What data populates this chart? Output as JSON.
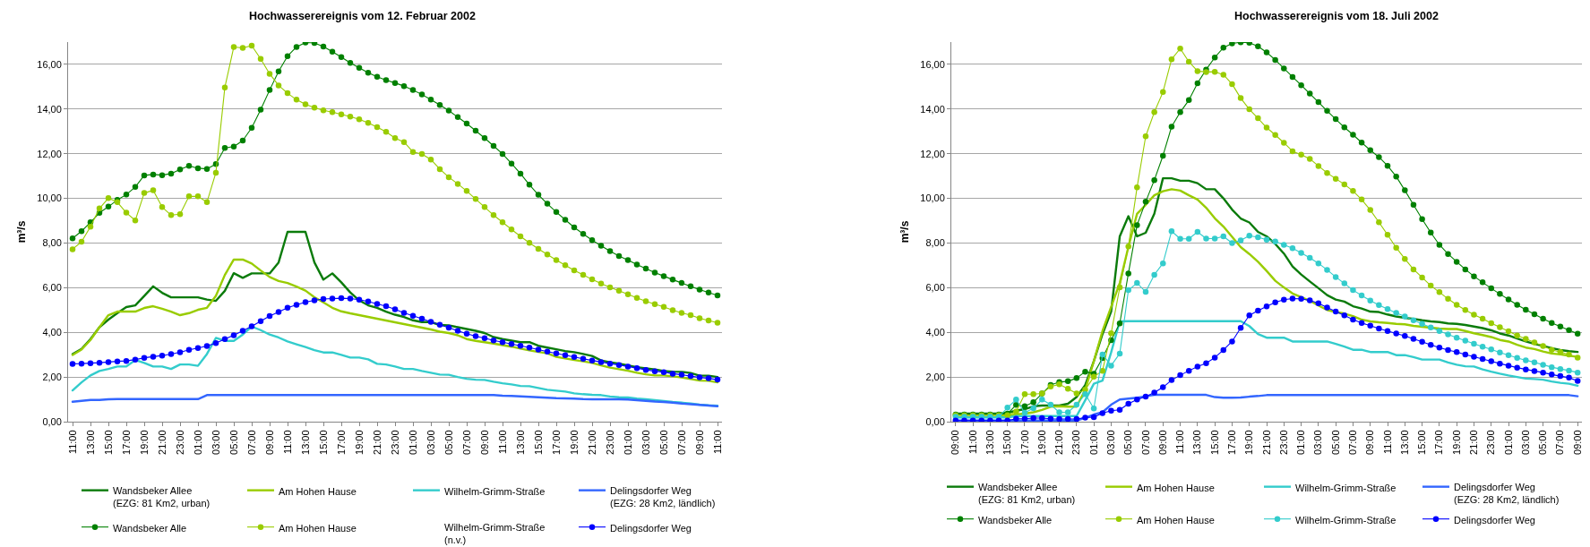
{
  "chart_data": [
    {
      "type": "line",
      "title": "Hochwasserereignis vom 12. Februar 2002",
      "ylabel": "m³/s",
      "grid": "y",
      "legend": "bottom",
      "categories": [
        "11:00",
        null,
        "13:00",
        null,
        "15:00",
        null,
        "17:00",
        null,
        "19:00",
        null,
        "21:00",
        null,
        "23:00",
        null,
        "01:00",
        null,
        "03:00",
        null,
        "05:00",
        null,
        "07:00",
        null,
        "09:00",
        null,
        "11:00",
        null,
        "13:00",
        null,
        "15:00",
        null,
        "17:00",
        null,
        "19:00",
        null,
        "21:00",
        null,
        "23:00",
        null,
        "01:00",
        null,
        "03:00",
        null,
        "05:00",
        null,
        "07:00",
        null,
        "09:00",
        null,
        "11:00",
        null,
        "13:00",
        null,
        "15:00",
        null,
        "17:00",
        null,
        "19:00",
        null,
        "21:00",
        null,
        "23:00",
        null,
        "01:00",
        null,
        "03:00",
        null,
        "05:00",
        null,
        "07:00",
        null,
        "09:00",
        null,
        "11:00"
      ],
      "ylim": [
        0,
        17
      ],
      "yticks": [
        {
          "value": 0,
          "label": "0,00"
        },
        {
          "value": 2,
          "label": "2,00"
        },
        {
          "value": 4,
          "label": "4,00"
        },
        {
          "value": 6,
          "label": "6,00"
        },
        {
          "value": 8,
          "label": "8,00"
        },
        {
          "value": 10,
          "label": "10,00"
        },
        {
          "value": 12,
          "label": "12,00"
        },
        {
          "value": 14,
          "label": "14,00"
        },
        {
          "value": 16,
          "label": "16,00"
        }
      ],
      "series": [
        {
          "name": "Wandsbeker Allee\n(EZG: 81 Km2, urban)",
          "color": "#0b7b0b",
          "marker": "none",
          "values": [
            3.03,
            3.26,
            3.7,
            4.23,
            4.57,
            4.86,
            5.13,
            5.21,
            5.63,
            6.06,
            5.77,
            5.57,
            5.57,
            5.57,
            5.57,
            5.47,
            5.41,
            5.86,
            6.65,
            6.44,
            6.64,
            6.64,
            6.64,
            7.13,
            8.5,
            8.5,
            8.5,
            7.13,
            6.36,
            6.64,
            6.24,
            5.79,
            5.43,
            5.21,
            5.1,
            4.93,
            4.79,
            4.69,
            4.54,
            4.46,
            4.46,
            4.33,
            4.31,
            4.23,
            4.15,
            4.07,
            3.97,
            3.79,
            3.7,
            3.63,
            3.56,
            3.56,
            3.4,
            3.32,
            3.24,
            3.16,
            3.11,
            3.03,
            2.94,
            2.74,
            2.66,
            2.6,
            2.52,
            2.44,
            2.39,
            2.34,
            2.27,
            2.24,
            2.23,
            2.18,
            2.06,
            2.06,
            2.0
          ]
        },
        {
          "name": "Am Hohen Hause",
          "color": "#99cc00",
          "marker": "none",
          "values": [
            2.99,
            3.23,
            3.66,
            4.23,
            4.77,
            4.93,
            4.93,
            4.93,
            5.09,
            5.17,
            5.06,
            4.93,
            4.77,
            4.86,
            5.01,
            5.1,
            5.63,
            6.57,
            7.26,
            7.26,
            7.08,
            6.77,
            6.48,
            6.3,
            6.21,
            6.05,
            5.87,
            5.57,
            5.34,
            5.1,
            4.94,
            4.85,
            4.77,
            4.69,
            4.61,
            4.53,
            4.45,
            4.37,
            4.29,
            4.21,
            4.13,
            4.03,
            3.97,
            3.87,
            3.7,
            3.62,
            3.56,
            3.5,
            3.43,
            3.36,
            3.27,
            3.19,
            3.12,
            3.06,
            2.9,
            2.83,
            2.76,
            2.7,
            2.63,
            2.52,
            2.42,
            2.35,
            2.28,
            2.19,
            2.12,
            2.07,
            2.07,
            2.03,
            1.98,
            1.91,
            1.84,
            1.83,
            1.76
          ]
        },
        {
          "name": "Wilhelm-Grimm-Straße",
          "color": "#33cccc",
          "marker": "none",
          "values": [
            1.4,
            1.76,
            2.07,
            2.27,
            2.36,
            2.47,
            2.47,
            2.76,
            2.63,
            2.47,
            2.47,
            2.36,
            2.56,
            2.56,
            2.5,
            3.03,
            3.75,
            3.62,
            3.62,
            3.9,
            4.26,
            4.1,
            3.9,
            3.77,
            3.59,
            3.46,
            3.34,
            3.2,
            3.1,
            3.1,
            2.99,
            2.87,
            2.87,
            2.79,
            2.59,
            2.56,
            2.47,
            2.36,
            2.36,
            2.27,
            2.19,
            2.11,
            2.1,
            2.0,
            1.92,
            1.88,
            1.87,
            1.79,
            1.72,
            1.67,
            1.6,
            1.59,
            1.51,
            1.43,
            1.39,
            1.35,
            1.27,
            1.23,
            1.2,
            1.19,
            1.13,
            1.09,
            1.08,
            1.03,
            1.0,
            0.96,
            0.92,
            0.88,
            0.85,
            0.81,
            0.76,
            0.73,
            0.71
          ]
        },
        {
          "name": "Delingsdorfer Weg\n(EZG: 28 Km2, ländlich)",
          "color": "#3366ff",
          "marker": "none",
          "values": [
            0.89,
            0.93,
            0.97,
            0.97,
            1.0,
            1.01,
            1.01,
            1.01,
            1.01,
            1.01,
            1.01,
            1.01,
            1.01,
            1.01,
            1.01,
            1.19,
            1.19,
            1.19,
            1.19,
            1.19,
            1.19,
            1.19,
            1.19,
            1.19,
            1.19,
            1.19,
            1.19,
            1.19,
            1.19,
            1.19,
            1.19,
            1.19,
            1.19,
            1.19,
            1.19,
            1.19,
            1.19,
            1.19,
            1.19,
            1.19,
            1.19,
            1.19,
            1.19,
            1.19,
            1.19,
            1.19,
            1.19,
            1.19,
            1.16,
            1.15,
            1.13,
            1.11,
            1.09,
            1.07,
            1.05,
            1.04,
            1.03,
            1.01,
            1.0,
            1.0,
            1.0,
            1.0,
            0.99,
            0.96,
            0.93,
            0.9,
            0.88,
            0.85,
            0.81,
            0.78,
            0.75,
            0.72,
            0.69
          ]
        },
        {
          "name": "Wandsbeker Alle",
          "color": "#008000",
          "marker": "circle",
          "values": [
            8.21,
            8.53,
            8.93,
            9.35,
            9.63,
            9.93,
            10.17,
            10.51,
            11.03,
            11.07,
            11.04,
            11.11,
            11.3,
            11.46,
            11.35,
            11.32,
            11.54,
            12.26,
            12.32,
            12.59,
            13.16,
            13.97,
            14.85,
            15.69,
            16.37,
            16.78,
            16.98,
            16.96,
            16.8,
            16.57,
            16.33,
            16.07,
            15.85,
            15.63,
            15.45,
            15.3,
            15.17,
            15.03,
            14.85,
            14.65,
            14.42,
            14.18,
            13.93,
            13.64,
            13.35,
            13.03,
            12.7,
            12.35,
            11.99,
            11.56,
            11.11,
            10.61,
            10.16,
            9.76,
            9.39,
            9.04,
            8.7,
            8.41,
            8.13,
            7.88,
            7.64,
            7.42,
            7.24,
            7.04,
            6.86,
            6.68,
            6.52,
            6.36,
            6.21,
            6.06,
            5.91,
            5.78,
            5.65
          ]
        },
        {
          "name": "Am Hohen Hause",
          "color": "#99cc00",
          "marker": "circle",
          "values": [
            7.72,
            8.06,
            8.73,
            9.55,
            10.01,
            9.83,
            9.36,
            9.01,
            10.24,
            10.36,
            9.61,
            9.25,
            9.29,
            10.09,
            10.09,
            9.83,
            11.15,
            14.97,
            16.78,
            16.74,
            16.84,
            16.25,
            15.58,
            15.06,
            14.71,
            14.42,
            14.21,
            14.06,
            13.94,
            13.86,
            13.76,
            13.66,
            13.54,
            13.38,
            13.19,
            12.98,
            12.7,
            12.52,
            12.08,
            11.99,
            11.74,
            11.31,
            10.95,
            10.65,
            10.33,
            9.97,
            9.61,
            9.25,
            8.93,
            8.61,
            8.3,
            8.01,
            7.74,
            7.49,
            7.24,
            7.01,
            6.78,
            6.58,
            6.37,
            6.18,
            6.01,
            5.86,
            5.7,
            5.54,
            5.39,
            5.26,
            5.14,
            4.99,
            4.87,
            4.77,
            4.63,
            4.53,
            4.43
          ]
        },
        {
          "name": "Wilhelm-Grimm-Straße\n(n.v.)",
          "marker": "none",
          "values": [
            null,
            null,
            null,
            null,
            null,
            null,
            null,
            null,
            null,
            null,
            null,
            null,
            null,
            null,
            null,
            null,
            null,
            null,
            null,
            null,
            null,
            null,
            null,
            null,
            null,
            null,
            null,
            null,
            null,
            null,
            null,
            null,
            null,
            null,
            null,
            null,
            null,
            null,
            null,
            null,
            null,
            null,
            null,
            null,
            null,
            null,
            null,
            null,
            null,
            null,
            null,
            null,
            null,
            null,
            null,
            null,
            null,
            null,
            null,
            null,
            null,
            null,
            null,
            null,
            null,
            null,
            null,
            null,
            null,
            null,
            null,
            null,
            null
          ]
        },
        {
          "name": "Delingsdorfer Weg",
          "color": "#0000ff",
          "marker": "circle",
          "values": [
            2.59,
            2.6,
            2.62,
            2.64,
            2.67,
            2.7,
            2.72,
            2.78,
            2.86,
            2.91,
            2.96,
            3.03,
            3.11,
            3.22,
            3.3,
            3.39,
            3.52,
            3.7,
            3.87,
            4.07,
            4.27,
            4.5,
            4.73,
            4.91,
            5.1,
            5.23,
            5.35,
            5.43,
            5.49,
            5.51,
            5.53,
            5.51,
            5.46,
            5.38,
            5.27,
            5.17,
            5.03,
            4.87,
            4.74,
            4.61,
            4.47,
            4.34,
            4.21,
            4.07,
            3.94,
            3.83,
            3.74,
            3.64,
            3.56,
            3.48,
            3.4,
            3.32,
            3.23,
            3.14,
            3.06,
            2.98,
            2.9,
            2.82,
            2.74,
            2.67,
            2.6,
            2.54,
            2.47,
            2.4,
            2.32,
            2.26,
            2.22,
            2.15,
            2.1,
            2.04,
            1.98,
            1.94,
            1.88
          ]
        }
      ]
    },
    {
      "type": "line",
      "title": "Hochwasserereignis vom 18. Juli 2002",
      "ylabel": "m³/s",
      "grid": "y",
      "legend": "bottom",
      "categories": [
        "09:00",
        null,
        "11:00",
        null,
        "13:00",
        null,
        "15:00",
        null,
        "17:00",
        null,
        "19:00",
        null,
        "21:00",
        null,
        "23:00",
        null,
        "01:00",
        null,
        "03:00",
        null,
        "05:00",
        null,
        "07:00",
        null,
        "09:00",
        null,
        "11:00",
        null,
        "13:00",
        null,
        "15:00",
        null,
        "17:00",
        null,
        "19:00",
        null,
        "21:00",
        null,
        "23:00",
        null,
        "01:00",
        null,
        "03:00",
        null,
        "05:00",
        null,
        "07:00",
        null,
        "09:00",
        null,
        "11:00",
        null,
        "13:00",
        null,
        "15:00",
        null,
        "17:00",
        null,
        "19:00",
        null,
        "21:00",
        null,
        "23:00",
        null,
        "01:00",
        null,
        "03:00",
        null,
        "05:00",
        null,
        "07:00",
        null,
        "09:00"
      ],
      "ylim": [
        0,
        17
      ],
      "yticks": [
        {
          "value": 0,
          "label": "0,00"
        },
        {
          "value": 2,
          "label": "2,00"
        },
        {
          "value": 4,
          "label": "4,00"
        },
        {
          "value": 6,
          "label": "6,00"
        },
        {
          "value": 8,
          "label": "8,00"
        },
        {
          "value": 10,
          "label": "10,00"
        },
        {
          "value": 12,
          "label": "12,00"
        },
        {
          "value": 14,
          "label": "14,00"
        },
        {
          "value": 16,
          "label": "16,00"
        }
      ],
      "series": [
        {
          "name": "Wandsbeker Allee\n(EZG: 81 Km2, urban)",
          "color": "#0b7b0b",
          "marker": "none",
          "values": [
            0.36,
            0.36,
            0.36,
            0.36,
            0.36,
            0.36,
            0.4,
            0.49,
            0.56,
            0.69,
            0.72,
            0.72,
            0.72,
            0.8,
            1.1,
            1.64,
            2.71,
            3.92,
            4.93,
            8.3,
            9.2,
            8.3,
            8.46,
            9.31,
            10.9,
            10.9,
            10.79,
            10.79,
            10.68,
            10.41,
            10.41,
            10.0,
            9.5,
            9.1,
            8.92,
            8.5,
            8.3,
            7.96,
            7.53,
            6.95,
            6.59,
            6.28,
            5.98,
            5.67,
            5.47,
            5.38,
            5.17,
            5.07,
            4.93,
            4.91,
            4.8,
            4.71,
            4.65,
            4.6,
            4.54,
            4.49,
            4.46,
            4.4,
            4.38,
            4.33,
            4.26,
            4.19,
            4.09,
            3.95,
            3.86,
            3.72,
            3.59,
            3.48,
            3.39,
            3.29,
            3.21,
            3.16,
            3.12
          ]
        },
        {
          "name": "Am Hohen Hause",
          "color": "#99cc00",
          "marker": "none",
          "values": [
            0.22,
            0.22,
            0.22,
            0.22,
            0.22,
            0.22,
            0.26,
            0.32,
            0.36,
            0.42,
            0.53,
            0.67,
            0.69,
            0.67,
            0.67,
            1.43,
            2.71,
            4.06,
            5.14,
            6.21,
            7.83,
            9.31,
            9.71,
            10.14,
            10.32,
            10.41,
            10.35,
            10.14,
            9.95,
            9.58,
            9.11,
            8.74,
            8.28,
            7.82,
            7.51,
            7.16,
            6.75,
            6.31,
            6.01,
            5.74,
            5.58,
            5.41,
            5.2,
            5.0,
            4.91,
            4.84,
            4.73,
            4.57,
            4.49,
            4.45,
            4.42,
            4.38,
            4.36,
            4.29,
            4.25,
            4.21,
            4.17,
            4.15,
            4.15,
            4.06,
            3.96,
            3.88,
            3.79,
            3.66,
            3.59,
            3.44,
            3.32,
            3.25,
            3.14,
            3.05,
            3.01,
            2.95,
            2.9
          ]
        },
        {
          "name": "Wilhelm-Grimm-Straße",
          "color": "#33cccc",
          "marker": "none",
          "values": [
            0.19,
            0.19,
            0.19,
            0.19,
            0.19,
            0.19,
            0.19,
            0.25,
            0.25,
            0.25,
            0.25,
            0.25,
            0.25,
            0.25,
            0.25,
            0.96,
            1.7,
            1.84,
            3.1,
            4.49,
            4.5,
            4.5,
            4.5,
            4.5,
            4.5,
            4.5,
            4.5,
            4.5,
            4.5,
            4.5,
            4.5,
            4.5,
            4.5,
            4.5,
            4.28,
            3.92,
            3.76,
            3.76,
            3.76,
            3.59,
            3.59,
            3.59,
            3.59,
            3.59,
            3.48,
            3.36,
            3.22,
            3.22,
            3.12,
            3.12,
            3.12,
            2.98,
            2.98,
            2.89,
            2.78,
            2.78,
            2.78,
            2.65,
            2.55,
            2.48,
            2.47,
            2.34,
            2.24,
            2.15,
            2.07,
            2.0,
            1.93,
            1.91,
            1.88,
            1.8,
            1.74,
            1.7,
            1.61
          ]
        },
        {
          "name": "Delingsdorfer Weg\n(EZG: 28 Km2, ländlich)",
          "color": "#3366ff",
          "marker": "none",
          "values": [
            0.05,
            0.05,
            0.05,
            0.05,
            0.05,
            0.05,
            0.05,
            0.05,
            0.05,
            0.05,
            0.05,
            0.05,
            0.05,
            0.05,
            0.05,
            0.18,
            0.32,
            0.42,
            0.76,
            0.99,
            1.03,
            1.07,
            1.14,
            1.2,
            1.2,
            1.2,
            1.2,
            1.2,
            1.2,
            1.2,
            1.1,
            1.07,
            1.07,
            1.08,
            1.12,
            1.15,
            1.19,
            1.19,
            1.19,
            1.19,
            1.19,
            1.19,
            1.19,
            1.19,
            1.19,
            1.19,
            1.19,
            1.19,
            1.19,
            1.19,
            1.19,
            1.19,
            1.19,
            1.19,
            1.19,
            1.19,
            1.19,
            1.19,
            1.19,
            1.19,
            1.19,
            1.19,
            1.19,
            1.19,
            1.19,
            1.19,
            1.19,
            1.19,
            1.19,
            1.19,
            1.19,
            1.19,
            1.14
          ]
        },
        {
          "name": "Wandsbeker Alle",
          "color": "#008000",
          "marker": "circle",
          "values": [
            0.32,
            0.32,
            0.32,
            0.32,
            0.32,
            0.32,
            0.36,
            0.75,
            0.69,
            0.87,
            1.26,
            1.64,
            1.77,
            1.81,
            1.95,
            2.24,
            2.15,
            2.85,
            3.65,
            4.4,
            6.64,
            8.8,
            9.85,
            10.82,
            11.91,
            13.21,
            13.86,
            14.4,
            15.16,
            15.77,
            16.31,
            16.75,
            16.94,
            16.99,
            16.97,
            16.81,
            16.54,
            16.2,
            15.82,
            15.44,
            15.07,
            14.69,
            14.31,
            13.92,
            13.55,
            13.18,
            12.85,
            12.5,
            12.16,
            11.85,
            11.46,
            10.98,
            10.36,
            9.71,
            9.07,
            8.47,
            7.92,
            7.51,
            7.16,
            6.82,
            6.51,
            6.24,
            5.97,
            5.72,
            5.47,
            5.23,
            5.01,
            4.81,
            4.61,
            4.42,
            4.26,
            4.1,
            3.94
          ]
        },
        {
          "name": "Am Hohen Hause",
          "color": "#99cc00",
          "marker": "circle",
          "values": [
            0.29,
            0.29,
            0.29,
            0.29,
            0.29,
            0.29,
            0.29,
            0.45,
            1.23,
            1.23,
            1.26,
            1.57,
            1.67,
            1.47,
            1.26,
            1.43,
            2.01,
            2.28,
            3.96,
            6.01,
            7.85,
            10.49,
            12.78,
            13.86,
            14.76,
            16.23,
            16.71,
            16.12,
            15.7,
            15.66,
            15.67,
            15.54,
            15.12,
            14.49,
            13.99,
            13.59,
            13.17,
            12.84,
            12.49,
            12.11,
            11.96,
            11.77,
            11.45,
            11.14,
            10.88,
            10.63,
            10.33,
            9.95,
            9.48,
            8.93,
            8.37,
            7.79,
            7.29,
            6.82,
            6.46,
            6.09,
            5.8,
            5.5,
            5.23,
            5.0,
            4.79,
            4.61,
            4.41,
            4.23,
            4.05,
            3.86,
            3.71,
            3.55,
            3.39,
            3.22,
            3.12,
            3.01,
            2.87
          ]
        },
        {
          "name": "Wilhelm-Grimm-Straße",
          "color": "#33cccc",
          "marker": "circle",
          "values": [
            0.22,
            0.22,
            0.22,
            0.22,
            0.22,
            0.22,
            0.63,
            0.99,
            0.4,
            0.6,
            0.99,
            0.76,
            0.42,
            0.42,
            0.76,
            1.23,
            0.59,
            3.01,
            2.51,
            3.05,
            5.89,
            6.21,
            5.81,
            6.58,
            7.09,
            8.53,
            8.19,
            8.19,
            8.5,
            8.2,
            8.2,
            8.3,
            8.0,
            8.12,
            8.33,
            8.26,
            8.15,
            8.07,
            7.92,
            7.77,
            7.56,
            7.34,
            7.09,
            6.8,
            6.48,
            6.19,
            5.89,
            5.65,
            5.42,
            5.22,
            5.04,
            4.87,
            4.71,
            4.54,
            4.38,
            4.22,
            4.06,
            3.91,
            3.76,
            3.63,
            3.49,
            3.36,
            3.24,
            3.1,
            2.98,
            2.86,
            2.75,
            2.66,
            2.55,
            2.44,
            2.36,
            2.29,
            2.2
          ]
        },
        {
          "name": "Delingsdorfer Weg",
          "color": "#0000ff",
          "marker": "circle",
          "values": [
            0.05,
            0.05,
            0.05,
            0.05,
            0.05,
            0.05,
            0.05,
            0.13,
            0.13,
            0.16,
            0.16,
            0.13,
            0.12,
            0.12,
            0.12,
            0.18,
            0.2,
            0.38,
            0.49,
            0.53,
            0.8,
            0.99,
            1.12,
            1.3,
            1.54,
            1.86,
            2.08,
            2.28,
            2.47,
            2.62,
            2.87,
            3.21,
            3.59,
            4.2,
            4.76,
            4.97,
            5.16,
            5.34,
            5.46,
            5.51,
            5.5,
            5.43,
            5.3,
            5.11,
            4.93,
            4.76,
            4.57,
            4.42,
            4.3,
            4.17,
            4.06,
            3.95,
            3.84,
            3.71,
            3.58,
            3.44,
            3.32,
            3.21,
            3.12,
            3.01,
            2.91,
            2.81,
            2.71,
            2.6,
            2.51,
            2.42,
            2.34,
            2.27,
            2.2,
            2.11,
            2.04,
            1.97,
            1.82
          ]
        }
      ]
    }
  ]
}
